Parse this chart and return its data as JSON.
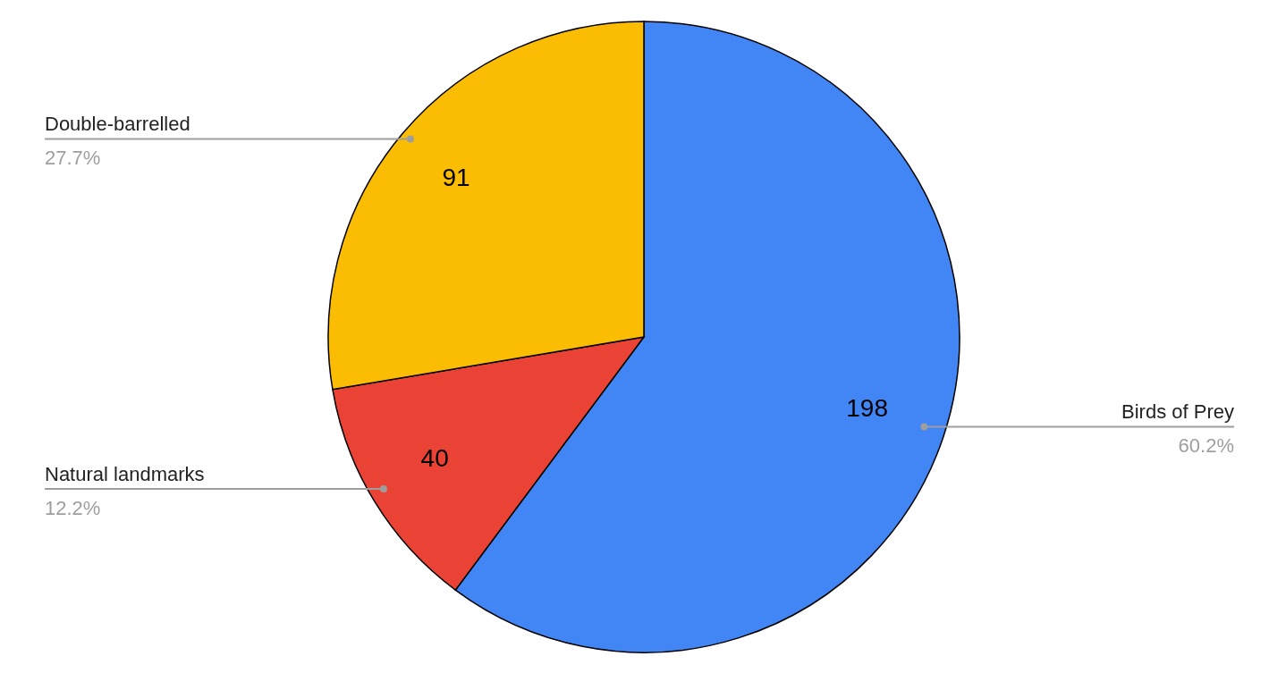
{
  "chart_data": {
    "type": "pie",
    "categories": [
      "Birds of Prey",
      "Natural landmarks",
      "Double-barrelled"
    ],
    "values": [
      198,
      40,
      91
    ],
    "colors": [
      "#4285f4",
      "#ea4335",
      "#fbbc04"
    ],
    "data_labels": true,
    "annotations": [
      "60.2%",
      "12.2%",
      "27.7%"
    ],
    "legend": false
  }
}
